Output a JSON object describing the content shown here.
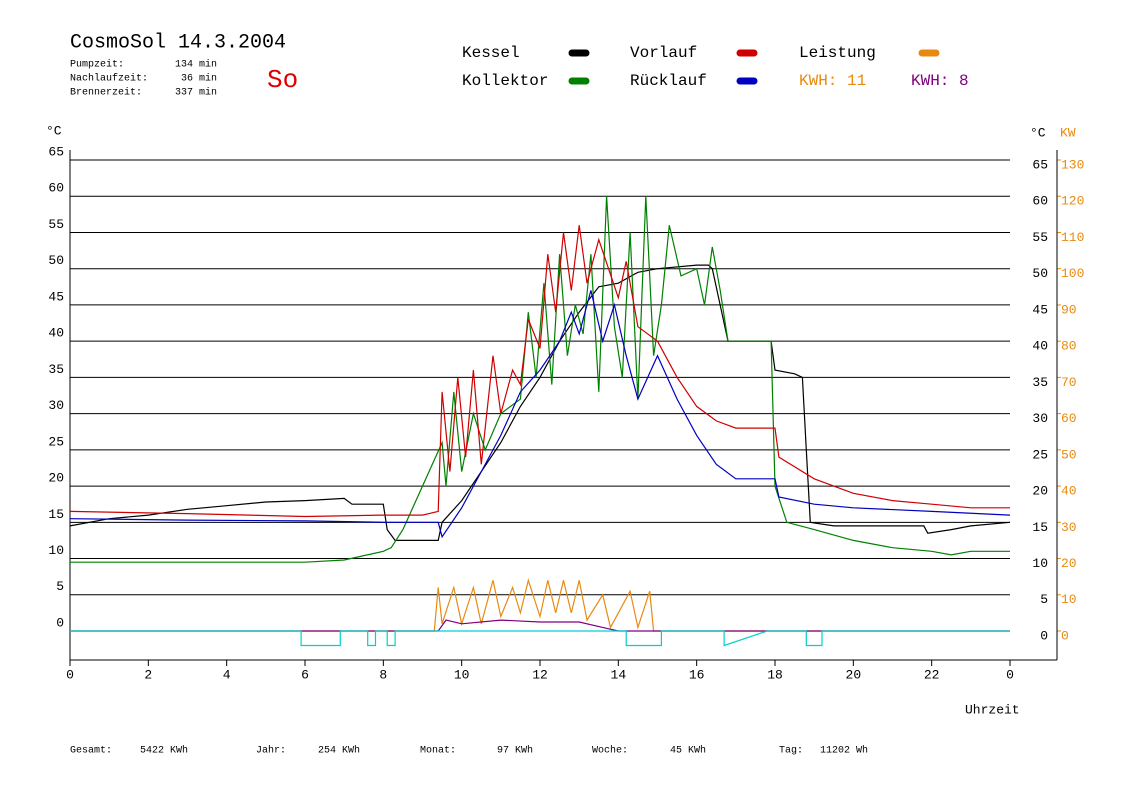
{
  "chart_data": {
    "type": "line",
    "title": "CosmoSol 14.3.2004",
    "day": "So",
    "stats": [
      {
        "label": "Pumpzeit:",
        "value": "134 min"
      },
      {
        "label": "Nachlaufzeit:",
        "value": "36 min"
      },
      {
        "label": "Brennerzeit:",
        "value": "337 min"
      }
    ],
    "kwh_labels": [
      {
        "text": "KWH: 11",
        "color": "#e88a10"
      },
      {
        "text": "KWH: 8",
        "color": "#800080"
      }
    ],
    "y_label": "°C",
    "y_label_right": "°C",
    "y2_label": "KW",
    "x_label": "Uhrzeit",
    "xlim": [
      0,
      25.2
    ],
    "xticks": [
      0,
      2,
      4,
      6,
      8,
      10,
      12,
      14,
      16,
      18,
      20,
      22,
      {
        "value": 24,
        "label": "0"
      }
    ],
    "ylim": [
      -4,
      65
    ],
    "yticks": [
      0,
      5,
      10,
      15,
      20,
      25,
      30,
      35,
      40,
      45,
      50,
      55,
      60,
      65
    ],
    "y2lim": [
      -8,
      130
    ],
    "y2ticks": [
      0,
      10,
      20,
      30,
      40,
      50,
      60,
      70,
      80,
      90,
      100,
      110,
      120,
      130
    ],
    "grid": true,
    "series": [
      {
        "name": "Kessel",
        "color": "#000000",
        "x": [
          0,
          1,
          2,
          3,
          4,
          5,
          6,
          7,
          7.2,
          8,
          8.1,
          8.3,
          9,
          9.4,
          9.5,
          10,
          10.5,
          11,
          11.5,
          12,
          12.5,
          13,
          13.5,
          14,
          14.5,
          15,
          16,
          16.3,
          16.4,
          16.8,
          17.5,
          17.9,
          18,
          18.5,
          18.7,
          18.8,
          18.9,
          19.5,
          20,
          21,
          21.8,
          21.9,
          22.5,
          23,
          24
        ],
        "values": [
          14.5,
          15.5,
          16,
          16.8,
          17.3,
          17.8,
          18,
          18.3,
          17.5,
          17.5,
          14,
          12.5,
          12.5,
          12.5,
          15,
          18,
          22,
          26,
          31,
          35,
          40,
          44,
          47.5,
          48,
          49.5,
          50,
          50.5,
          50.5,
          50,
          40,
          40,
          40,
          36,
          35.5,
          35,
          25,
          15,
          14.5,
          14.5,
          14.5,
          14.5,
          13.5,
          14,
          14.5,
          15
        ]
      },
      {
        "name": "Kollektor",
        "color": "#008000",
        "x": [
          0,
          2,
          4,
          6,
          7,
          8,
          8.2,
          8.5,
          9,
          9.5,
          9.6,
          9.8,
          10,
          10.3,
          10.6,
          11,
          11.5,
          11.7,
          11.9,
          12.1,
          12.3,
          12.5,
          12.7,
          12.9,
          13.1,
          13.3,
          13.5,
          13.7,
          13.9,
          14.1,
          14.3,
          14.5,
          14.7,
          14.9,
          15.1,
          15.3,
          15.6,
          16,
          16.2,
          16.4,
          16.6,
          16.8,
          17.5,
          17.9,
          18,
          18.3,
          19,
          20,
          21,
          22,
          22.5,
          23,
          24
        ],
        "values": [
          9.5,
          9.5,
          9.5,
          9.5,
          9.8,
          11,
          11.5,
          14,
          20,
          26,
          20,
          33,
          22,
          30,
          25,
          30,
          32,
          44,
          35,
          48,
          34,
          52,
          38,
          45,
          41,
          52,
          33,
          60,
          42,
          35,
          55,
          32,
          60,
          38,
          45,
          56,
          49,
          50,
          45,
          53,
          47,
          40,
          40,
          40,
          20,
          15,
          14,
          12.5,
          11.5,
          11,
          10.5,
          11,
          11
        ]
      },
      {
        "name": "Vorlauf",
        "color": "#d00000",
        "x": [
          0,
          3,
          6,
          8,
          9,
          9.4,
          9.5,
          9.7,
          9.9,
          10.1,
          10.3,
          10.5,
          10.8,
          11,
          11.3,
          11.5,
          11.7,
          12,
          12.2,
          12.4,
          12.6,
          12.8,
          13,
          13.2,
          13.5,
          14,
          14.2,
          14.5,
          15,
          15.5,
          16,
          16.5,
          17,
          18,
          18.1,
          19,
          20,
          21,
          22,
          23,
          24
        ],
        "values": [
          16.5,
          16.2,
          15.8,
          16,
          16,
          16.5,
          33,
          22,
          35,
          24,
          36,
          23,
          38,
          30,
          36,
          34,
          43,
          39,
          52,
          44,
          55,
          47,
          56,
          48,
          54,
          46,
          51,
          42,
          40,
          35,
          31,
          29,
          28,
          28,
          24,
          21,
          19,
          18,
          17.5,
          17,
          17
        ]
      },
      {
        "name": "Rücklauf",
        "color": "#0000c0",
        "x": [
          0,
          3,
          6,
          8,
          9.4,
          9.5,
          10,
          10.5,
          11,
          11.5,
          12,
          12.5,
          12.8,
          13,
          13.3,
          13.6,
          13.9,
          14.2,
          14.5,
          15,
          15.5,
          16,
          16.5,
          17,
          18,
          18.1,
          19,
          20,
          22,
          24
        ],
        "values": [
          15.5,
          15.3,
          15.2,
          15,
          15,
          13,
          17,
          22,
          27,
          33,
          36,
          40,
          44,
          41,
          47,
          40,
          45,
          38,
          32,
          38,
          32,
          27,
          23,
          21,
          21,
          18.5,
          17.5,
          17,
          16.5,
          16
        ]
      },
      {
        "name": "Leistung",
        "color": "#e88a10",
        "axis": "y2",
        "x": [
          0,
          9.3,
          9.4,
          9.5,
          9.8,
          10,
          10.3,
          10.5,
          10.8,
          11,
          11.3,
          11.5,
          11.7,
          12,
          12.2,
          12.4,
          12.6,
          12.8,
          13,
          13.2,
          13.6,
          13.8,
          14.3,
          14.5,
          14.8,
          14.9,
          24
        ],
        "values": [
          0,
          0,
          12,
          2,
          12,
          2,
          12,
          2,
          14,
          4,
          12,
          5,
          14,
          4,
          14,
          5,
          14,
          5,
          14,
          3,
          10,
          1,
          11,
          1,
          11,
          0,
          0
        ]
      },
      {
        "color": "#800080",
        "axis": "y2",
        "x": [
          0,
          9.4,
          9.6,
          10,
          11,
          12,
          13,
          13.6,
          14,
          24
        ],
        "values": [
          0,
          0,
          3,
          2,
          3,
          2.5,
          2.5,
          1,
          0,
          0
        ]
      },
      {
        "color": "#00d0d0",
        "x": [
          0,
          5.9,
          5.9,
          6.9,
          6.9,
          7.6,
          7.6,
          7.8,
          7.8,
          8.1,
          8.1,
          8.3,
          8.3,
          14.2,
          14.2,
          15.1,
          15.1,
          16.7,
          16.7,
          17.8,
          17.8,
          18.8,
          18.8,
          19.2,
          19.2,
          24
        ],
        "values": [
          0,
          0,
          -2,
          -2,
          0,
          0,
          -2,
          -2,
          0,
          0,
          -2,
          -2,
          0,
          0,
          -2,
          -2,
          0,
          0,
          -2,
          0,
          0,
          0,
          -2,
          -2,
          0,
          0
        ]
      }
    ],
    "totals": [
      {
        "label": "Gesamt:",
        "value": "5422 KWh"
      },
      {
        "label": "Jahr:",
        "value": "254 KWh"
      },
      {
        "label": "Monat:",
        "value": "97 KWh"
      },
      {
        "label": "Woche:",
        "value": "45 KWh"
      },
      {
        "label": "Tag:",
        "value": "11202 Wh"
      }
    ]
  }
}
